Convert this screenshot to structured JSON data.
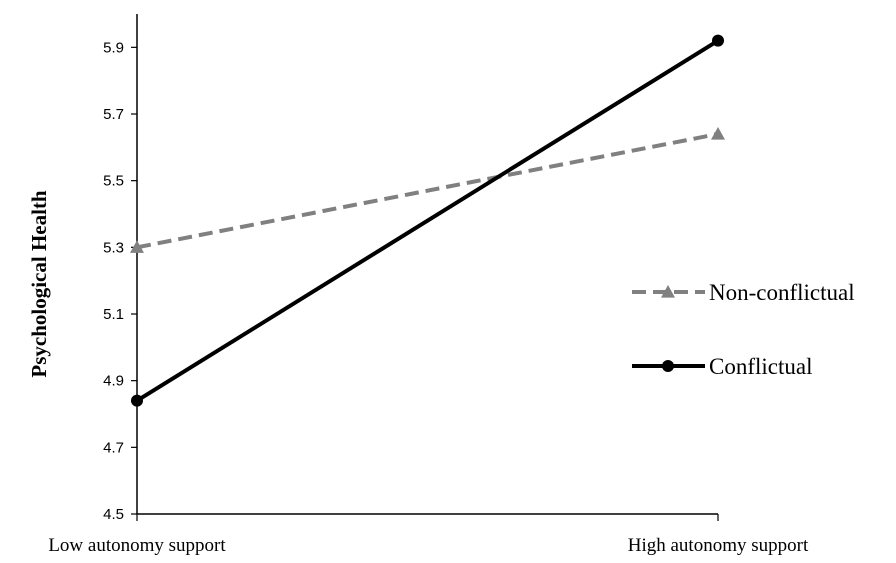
{
  "chart_data": {
    "type": "line",
    "categories": [
      "Low autonomy support",
      "High autonomy support"
    ],
    "ylabel": "Psychological Health",
    "ylim": [
      4.5,
      6.0
    ],
    "yticks": [
      4.5,
      4.7,
      4.9,
      5.1,
      5.3,
      5.5,
      5.7,
      5.9
    ],
    "ytick_labels": [
      "4.5",
      "4.7",
      "4.9",
      "5.1",
      "5.3",
      "5.5",
      "5.7",
      "5.9"
    ],
    "grid": false,
    "legend_position": "right",
    "series": [
      {
        "name": "Non-conflictual",
        "values": [
          5.3,
          5.64
        ],
        "color": "#808080",
        "dash": "dashed",
        "marker": "triangle"
      },
      {
        "name": "Conflictual",
        "values": [
          4.84,
          5.92
        ],
        "color": "#000000",
        "dash": "solid",
        "marker": "circle"
      }
    ]
  }
}
